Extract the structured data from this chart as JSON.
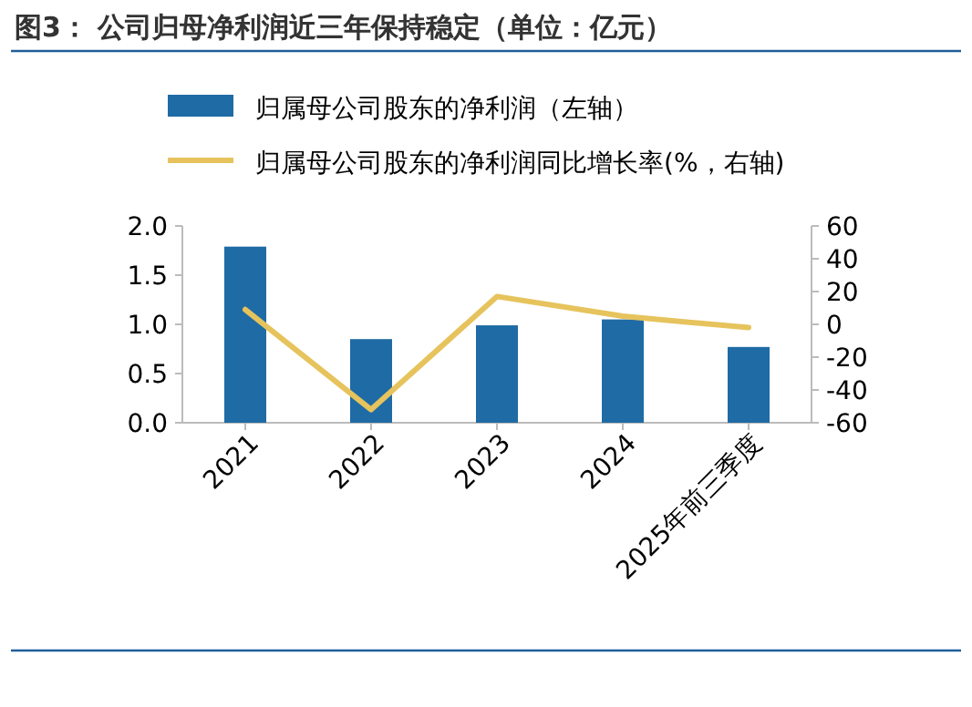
{
  "chart_data": {
    "type": "bar",
    "title": "图3： 公司归母净利润近三年保持稳定（单位：亿元）",
    "categories": [
      "2021",
      "2022",
      "2023",
      "2024",
      "2025年前三季度"
    ],
    "series": [
      {
        "name": "归属母公司股东的净利润（左轴）",
        "color": "#1f6ba5",
        "values": [
          1.79,
          0.85,
          0.99,
          1.05,
          0.77
        ]
      },
      {
        "name": "归属母公司股东的净利润同比增长率(%，右轴)",
        "type": "line",
        "axis": "y2",
        "color": "#e6c35c",
        "values": [
          9,
          -52,
          17,
          5,
          -2
        ]
      }
    ],
    "ylim": [
      0,
      2.0
    ],
    "yticks": [
      {
        "value": 0,
        "label": "0.0"
      },
      {
        "value": 0.5,
        "label": "0.5"
      },
      {
        "value": 1,
        "label": "1.0"
      },
      {
        "value": 1.5,
        "label": "1.5"
      },
      {
        "value": 2,
        "label": "2.0"
      }
    ],
    "y2lim": [
      -60,
      60
    ],
    "y2ticks": [
      -60,
      -40,
      -20,
      0,
      20,
      40,
      60
    ],
    "legend": "top"
  }
}
